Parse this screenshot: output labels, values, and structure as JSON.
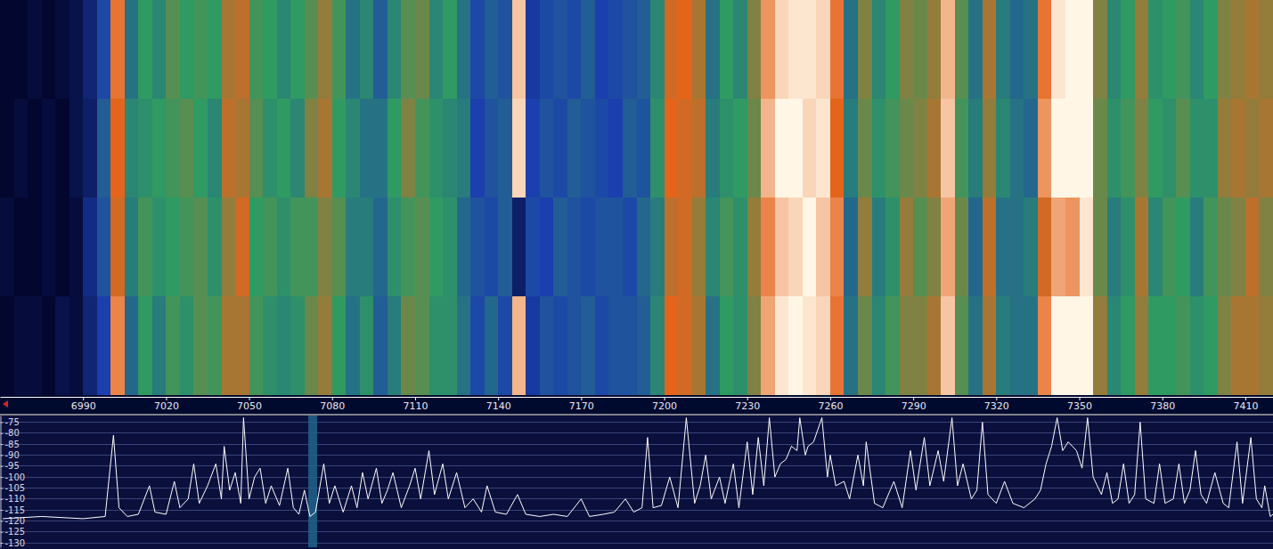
{
  "chart_data": [
    {
      "type": "heatmap",
      "xlim": [
        6960,
        7420
      ],
      "zlim": [
        -122,
        -86
      ],
      "tick_labels": false,
      "x_edges": [
        6960,
        6965,
        6970,
        6975,
        6980,
        6985,
        6990,
        6995,
        7000,
        7005,
        7010,
        7015,
        7020,
        7025,
        7030,
        7035,
        7040,
        7045,
        7050,
        7055,
        7060,
        7065,
        7070,
        7075,
        7080,
        7085,
        7090,
        7095,
        7100,
        7105,
        7110,
        7115,
        7120,
        7125,
        7130,
        7135,
        7140,
        7145,
        7150,
        7155,
        7160,
        7165,
        7170,
        7175,
        7180,
        7185,
        7190,
        7195,
        7200,
        7205,
        7210,
        7215,
        7220,
        7225,
        7230,
        7235,
        7240,
        7245,
        7250,
        7255,
        7260,
        7265,
        7270,
        7275,
        7280,
        7285,
        7290,
        7295,
        7300,
        7305,
        7310,
        7315,
        7320,
        7325,
        7330,
        7335,
        7340,
        7345,
        7350,
        7355,
        7360,
        7365,
        7370,
        7375,
        7380,
        7385,
        7390,
        7395,
        7400,
        7405,
        7410,
        7415,
        7420
      ],
      "cells": [
        [
          -122,
          -122,
          -121,
          -122,
          -121,
          -120,
          -117,
          -112,
          -94,
          -108,
          -104,
          -106,
          -102,
          -104,
          -103,
          -104,
          -98,
          -97,
          -103,
          -104,
          -106,
          -104,
          -102,
          -99,
          -103,
          -108,
          -106,
          -110,
          -106,
          -102,
          -101,
          -106,
          -104,
          -108,
          -112,
          -110,
          -111,
          -89,
          -114,
          -112,
          -111,
          -112,
          -110,
          -113,
          -112,
          -111,
          -110,
          -106,
          -96,
          -95,
          -98,
          -108,
          -104,
          -106,
          -100,
          -92,
          -88,
          -87,
          -87,
          -88,
          -94,
          -108,
          -100,
          -106,
          -104,
          -100,
          -101,
          -99,
          -90,
          -102,
          -108,
          -98,
          -107,
          -109,
          -108,
          -94,
          -87,
          -86,
          -85,
          -100,
          -106,
          -104,
          -99,
          -105,
          -104,
          -103,
          -106,
          -104,
          -100,
          -99,
          -98,
          -99
        ],
        [
          -122,
          -121,
          -122,
          -121,
          -122,
          -120,
          -118,
          -110,
          -95,
          -106,
          -105,
          -104,
          -103,
          -102,
          -104,
          -106,
          -97,
          -98,
          -102,
          -105,
          -104,
          -106,
          -100,
          -98,
          -104,
          -106,
          -108,
          -108,
          -104,
          -100,
          -103,
          -105,
          -106,
          -107,
          -113,
          -111,
          -110,
          -88,
          -113,
          -111,
          -112,
          -110,
          -111,
          -112,
          -113,
          -110,
          -111,
          -105,
          -95,
          -96,
          -97,
          -107,
          -105,
          -104,
          -101,
          -90,
          -86,
          -86,
          -88,
          -87,
          -95,
          -107,
          -101,
          -105,
          -103,
          -101,
          -100,
          -98,
          -89,
          -103,
          -107,
          -99,
          -106,
          -108,
          -109,
          -92,
          -86,
          -85,
          -86,
          -101,
          -105,
          -103,
          -100,
          -104,
          -105,
          -102,
          -105,
          -105,
          -99,
          -98,
          -99,
          -98
        ],
        [
          -121,
          -122,
          -122,
          -121,
          -122,
          -121,
          -116,
          -111,
          -96,
          -107,
          -103,
          -105,
          -104,
          -103,
          -102,
          -105,
          -99,
          -96,
          -104,
          -103,
          -105,
          -103,
          -103,
          -100,
          -102,
          -107,
          -107,
          -109,
          -105,
          -103,
          -102,
          -104,
          -105,
          -109,
          -111,
          -112,
          -110,
          -118,
          -112,
          -113,
          -110,
          -111,
          -112,
          -111,
          -111,
          -112,
          -109,
          -107,
          -97,
          -96,
          -99,
          -106,
          -103,
          -105,
          -99,
          -93,
          -89,
          -88,
          -86,
          -89,
          -93,
          -109,
          -99,
          -107,
          -105,
          -99,
          -102,
          -100,
          -91,
          -101,
          -109,
          -97,
          -108,
          -108,
          -107,
          -96,
          -91,
          -92,
          -87,
          -101,
          -107,
          -105,
          -98,
          -106,
          -103,
          -104,
          -107,
          -103,
          -101,
          -100,
          -97,
          -100
        ],
        [
          -122,
          -121,
          -121,
          -122,
          -120,
          -121,
          -117,
          -113,
          -93,
          -109,
          -104,
          -107,
          -103,
          -105,
          -102,
          -103,
          -98,
          -98,
          -103,
          -105,
          -106,
          -105,
          -101,
          -99,
          -104,
          -108,
          -105,
          -110,
          -107,
          -101,
          -102,
          -105,
          -105,
          -108,
          -112,
          -109,
          -112,
          -90,
          -114,
          -111,
          -112,
          -111,
          -110,
          -112,
          -111,
          -111,
          -110,
          -106,
          -95,
          -96,
          -98,
          -108,
          -104,
          -105,
          -100,
          -91,
          -87,
          -86,
          -87,
          -88,
          -94,
          -108,
          -101,
          -106,
          -103,
          -100,
          -100,
          -98,
          -89,
          -102,
          -108,
          -98,
          -107,
          -108,
          -108,
          -93,
          -86,
          -86,
          -85,
          -99,
          -106,
          -104,
          -99,
          -104,
          -104,
          -103,
          -105,
          -104,
          -100,
          -98,
          -98,
          -99
        ]
      ]
    },
    {
      "type": "line",
      "xlim": [
        6960,
        7420
      ],
      "xticks": [
        6990,
        7020,
        7050,
        7080,
        7110,
        7140,
        7170,
        7200,
        7230,
        7260,
        7290,
        7320,
        7350,
        7380,
        7410
      ],
      "ylim": [
        -132,
        -72
      ],
      "yticks": [
        -75,
        -80,
        -85,
        -90,
        -95,
        -100,
        -105,
        -110,
        -115,
        -120,
        -125,
        -130
      ],
      "grid": true,
      "tuned_frequency": 7073,
      "x": [
        6961,
        6975,
        6990,
        6998,
        7001,
        7003,
        7006,
        7010,
        7014,
        7016,
        7020,
        7023,
        7025,
        7028,
        7030,
        7032,
        7035,
        7038,
        7040,
        7041,
        7043,
        7045,
        7047,
        7048,
        7050,
        7052,
        7054,
        7056,
        7058,
        7061,
        7064,
        7066,
        7068,
        7070,
        7072,
        7074,
        7077,
        7079,
        7081,
        7084,
        7087,
        7089,
        7091,
        7093,
        7096,
        7098,
        7100,
        7102,
        7105,
        7108,
        7110,
        7112,
        7115,
        7117,
        7120,
        7122,
        7125,
        7128,
        7131,
        7134,
        7136,
        7139,
        7143,
        7147,
        7150,
        7155,
        7160,
        7165,
        7170,
        7173,
        7178,
        7182,
        7186,
        7189,
        7192,
        7194,
        7196,
        7199,
        7202,
        7205,
        7208,
        7211,
        7213,
        7215,
        7217,
        7220,
        7222,
        7225,
        7227,
        7230,
        7232,
        7234,
        7236,
        7238,
        7240,
        7242,
        7244,
        7246,
        7248,
        7249,
        7251,
        7252,
        7254,
        7257,
        7259,
        7260,
        7262,
        7265,
        7267,
        7270,
        7272,
        7273,
        7276,
        7279,
        7283,
        7286,
        7289,
        7291,
        7294,
        7296,
        7299,
        7301,
        7304,
        7306,
        7308,
        7311,
        7313,
        7315,
        7317,
        7320,
        7323,
        7326,
        7330,
        7334,
        7336,
        7338,
        7340,
        7342,
        7344,
        7346,
        7349,
        7351,
        7353,
        7355,
        7358,
        7360,
        7362,
        7364,
        7366,
        7368,
        7370,
        7372,
        7374,
        7377,
        7379,
        7381,
        7384,
        7386,
        7388,
        7390,
        7392,
        7394,
        7396,
        7399,
        7402,
        7404,
        7407,
        7409,
        7412,
        7414,
        7416,
        7417,
        7419,
        7420
      ],
      "series": [
        {
          "color": "#ffffff",
          "values": [
            -119,
            -118,
            -119,
            -118,
            -81,
            -114,
            -118,
            -117,
            -104,
            -116,
            -117,
            -102,
            -114,
            -110,
            -94,
            -112,
            -104,
            -94,
            -110,
            -86,
            -106,
            -98,
            -112,
            -73,
            -110,
            -100,
            -96,
            -112,
            -104,
            -113,
            -96,
            -114,
            -117,
            -106,
            -118,
            -116,
            -94,
            -112,
            -104,
            -116,
            -104,
            -114,
            -98,
            -110,
            -96,
            -112,
            -106,
            -98,
            -114,
            -104,
            -96,
            -110,
            -88,
            -108,
            -94,
            -110,
            -98,
            -114,
            -110,
            -116,
            -104,
            -116,
            -117,
            -108,
            -117,
            -118,
            -117,
            -118,
            -110,
            -118,
            -117,
            -116,
            -110,
            -116,
            -114,
            -82,
            -114,
            -113,
            -100,
            -114,
            -73,
            -112,
            -104,
            -90,
            -110,
            -100,
            -112,
            -94,
            -114,
            -84,
            -108,
            -82,
            -104,
            -73,
            -100,
            -94,
            -92,
            -86,
            -88,
            -73,
            -90,
            -86,
            -84,
            -73,
            -100,
            -90,
            -104,
            -102,
            -110,
            -90,
            -104,
            -84,
            -112,
            -114,
            -102,
            -114,
            -88,
            -106,
            -82,
            -104,
            -88,
            -102,
            -73,
            -104,
            -94,
            -110,
            -106,
            -75,
            -108,
            -112,
            -102,
            -112,
            -114,
            -110,
            -106,
            -94,
            -86,
            -73,
            -88,
            -84,
            -88,
            -96,
            -73,
            -100,
            -108,
            -98,
            -112,
            -110,
            -94,
            -112,
            -108,
            -75,
            -110,
            -112,
            -94,
            -112,
            -110,
            -94,
            -112,
            -106,
            -88,
            -108,
            -112,
            -98,
            -112,
            -114,
            -84,
            -112,
            -82,
            -110,
            -114,
            -104,
            -118,
            -117
          ]
        }
      ]
    }
  ]
}
